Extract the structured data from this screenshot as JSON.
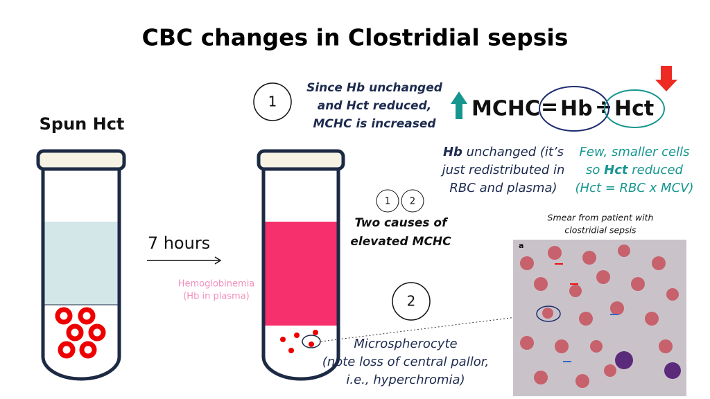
{
  "title": "CBC changes in Clostridial sepsis",
  "left_tube": {
    "label": "Spun Hct"
  },
  "transition": {
    "label": "7 hours",
    "note": [
      "Hemoglobinemia",
      "(Hb in plasma)"
    ]
  },
  "step1": {
    "number": "1",
    "lines": [
      "Since Hb unchanged",
      "and Hct reduced,",
      "MCHC is increased"
    ]
  },
  "formula": {
    "lhs": "MCHC",
    "equals": "=",
    "numerator": "Hb",
    "divide": "÷",
    "denominator": "Hct"
  },
  "hb_note": {
    "bold": "Hb",
    "lines": [
      " unchanged (it’s",
      "just redistributed in",
      "RBC and plasma)"
    ]
  },
  "hct_note": {
    "lines": [
      "Few, smaller cells",
      "so ",
      "Hct",
      " reduced",
      "(Hct = RBC x MCV)"
    ]
  },
  "causes": {
    "numbers": [
      "1",
      "2"
    ],
    "lines": [
      "Two causes of",
      "elevated MCHC"
    ]
  },
  "step2": {
    "number": "2",
    "lines": [
      "Microspherocyte",
      "(note loss of central pallor,",
      "i.e., hyperchromia)"
    ]
  },
  "smear": {
    "caption": [
      "Smear from patient with",
      "clostridial sepsis"
    ],
    "panel_label": "a"
  }
}
